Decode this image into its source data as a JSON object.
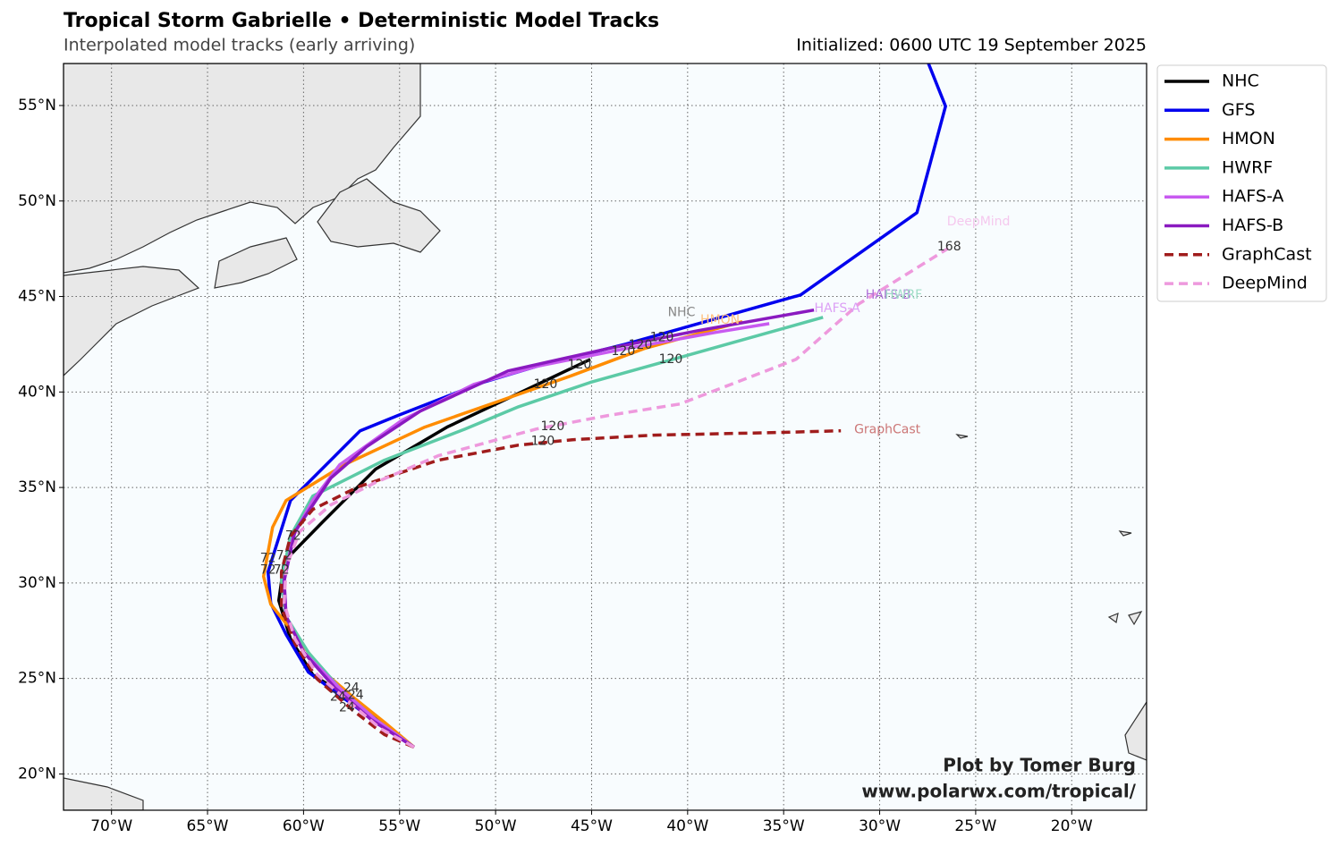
{
  "chart_data": {
    "type": "line",
    "title": "Tropical Storm Gabrielle • Deterministic Model Tracks",
    "subtitle": "Interpolated model tracks (early arriving)",
    "init_text": "Initialized: 0600 UTC 19 September 2025",
    "credit": [
      "Plot by Tomer Burg",
      "www.polarwx.com/tropical/"
    ],
    "grid": true,
    "legend": "upper right outside",
    "xlim": [
      -72.5,
      -16.1
    ],
    "ylim": [
      18.1,
      57.2
    ],
    "xticks": [
      {
        "value": -70,
        "label": "70°W"
      },
      {
        "value": -65,
        "label": "65°W"
      },
      {
        "value": -60,
        "label": "60°W"
      },
      {
        "value": -55,
        "label": "55°W"
      },
      {
        "value": -50,
        "label": "50°W"
      },
      {
        "value": -45,
        "label": "45°W"
      },
      {
        "value": -40,
        "label": "40°W"
      },
      {
        "value": -35,
        "label": "35°W"
      },
      {
        "value": -30,
        "label": "30°W"
      },
      {
        "value": -25,
        "label": "25°W"
      },
      {
        "value": -20,
        "label": "20°W"
      }
    ],
    "yticks": [
      {
        "value": 20,
        "label": "20°N"
      },
      {
        "value": 25,
        "label": "25°N"
      },
      {
        "value": 30,
        "label": "30°N"
      },
      {
        "value": 35,
        "label": "35°N"
      },
      {
        "value": 40,
        "label": "40°N"
      },
      {
        "value": 45,
        "label": "45°N"
      },
      {
        "value": 50,
        "label": "50°N"
      },
      {
        "value": 55,
        "label": "55°N"
      }
    ],
    "series": [
      {
        "name": "NHC",
        "color": "#000000",
        "linestyle": "solid",
        "x": [
          -54.25,
          -56.95,
          -59.52,
          -60.68,
          -61.29,
          -61.0,
          -59.05,
          -56.25,
          -52.53,
          -48.8,
          -45.07
        ],
        "values": [
          21.4,
          23.56,
          25.19,
          27.07,
          29.08,
          31.14,
          33.15,
          35.96,
          38.16,
          39.93,
          41.71
        ]
      },
      {
        "name": "GFS",
        "color": "#0000ee",
        "linestyle": "solid",
        "x": [
          -54.25,
          -56.72,
          -59.75,
          -60.91,
          -61.71,
          -61.85,
          -60.68,
          -57.05,
          -55.09,
          -50.66,
          -47.87,
          -43.21,
          -34.12,
          -28.06,
          -26.57,
          -27.46
        ],
        "values": [
          21.4,
          23.09,
          25.33,
          27.3,
          28.94,
          30.58,
          34.32,
          37.97,
          38.77,
          40.5,
          41.34,
          42.51,
          45.08,
          49.39,
          54.96,
          57.2
        ]
      },
      {
        "name": "HMON",
        "color": "#ff8c00",
        "linestyle": "solid",
        "x": [
          -54.25,
          -55.79,
          -57.42,
          -59.05,
          -60.45,
          -61.71,
          -62.08,
          -61.61,
          -60.91,
          -57.88,
          -53.69,
          -49.96,
          -46.0,
          -42.27,
          -38.55,
          -37.15
        ],
        "values": [
          21.4,
          22.71,
          24.02,
          25.43,
          27.3,
          28.89,
          30.34,
          32.92,
          34.32,
          36.19,
          38.16,
          39.47,
          40.87,
          42.27,
          43.3,
          43.68
        ]
      },
      {
        "name": "HWRF",
        "color": "#5ccaa6",
        "linestyle": "solid",
        "x": [
          -54.25,
          -56.25,
          -58.12,
          -59.75,
          -60.91,
          -61.15,
          -60.68,
          -59.52,
          -55.79,
          -51.59,
          -48.8,
          -45.07,
          -40.41,
          -32.95
        ],
        "values": [
          21.4,
          22.85,
          24.49,
          26.36,
          28.24,
          30.11,
          32.45,
          34.55,
          36.43,
          38.06,
          39.23,
          40.5,
          41.81,
          43.91
        ]
      },
      {
        "name": "HAFS-A",
        "color": "#c85af0",
        "linestyle": "solid",
        "x": [
          -54.25,
          -56.25,
          -58.12,
          -59.98,
          -60.91,
          -61.01,
          -60.54,
          -59.52,
          -58.12,
          -54.86,
          -51.13,
          -47.87,
          -43.21,
          -38.55,
          -35.75
        ],
        "values": [
          21.4,
          22.85,
          24.49,
          26.36,
          28.24,
          30.11,
          32.45,
          34.32,
          36.19,
          38.53,
          40.4,
          41.34,
          42.27,
          43.12,
          43.58
        ]
      },
      {
        "name": "HAFS-B",
        "color": "#8a1ac0",
        "linestyle": "solid",
        "x": [
          -54.25,
          -56.49,
          -58.35,
          -59.98,
          -60.91,
          -61.01,
          -60.45,
          -58.58,
          -56.72,
          -53.92,
          -49.36,
          -44.14,
          -39.48,
          -33.42
        ],
        "values": [
          21.4,
          22.85,
          24.49,
          26.36,
          28.24,
          30.11,
          32.68,
          35.49,
          37.13,
          39.0,
          41.1,
          42.27,
          43.21,
          44.29
        ]
      },
      {
        "name": "GraphCast",
        "color": "#a01c1c",
        "linestyle": "dashed",
        "x": [
          -54.25,
          -55.79,
          -57.42,
          -59.28,
          -60.45,
          -61.15,
          -61.15,
          -60.68,
          -59.52,
          -57.19,
          -52.99,
          -48.8,
          -46.0,
          -41.81,
          -35.28,
          -32.02
        ],
        "values": [
          21.4,
          22.06,
          23.32,
          24.96,
          26.83,
          28.7,
          30.58,
          32.45,
          33.85,
          35.02,
          36.43,
          37.22,
          37.5,
          37.74,
          37.88,
          37.97
        ]
      },
      {
        "name": "DeepMind",
        "color": "#ee99dd",
        "linestyle": "dashed",
        "x": [
          -54.25,
          -56.02,
          -57.65,
          -59.28,
          -60.45,
          -61.01,
          -60.91,
          -60.21,
          -58.58,
          -56.25,
          -52.99,
          -47.87,
          -44.14,
          -40.41,
          -34.35,
          -31.09,
          -26.43
        ],
        "values": [
          21.4,
          22.39,
          23.79,
          25.19,
          27.07,
          28.94,
          30.81,
          32.68,
          34.09,
          35.26,
          36.66,
          38.06,
          38.77,
          39.37,
          41.71,
          44.61,
          47.52
        ]
      }
    ],
    "annotations": [
      {
        "text": "NHC",
        "x": -40.32,
        "y": 44.15,
        "color": "#888888"
      },
      {
        "text": "HMON",
        "x": -38.31,
        "y": 43.77,
        "color": "#ffc080"
      },
      {
        "text": "HAFS-A",
        "x": -32.21,
        "y": 44.38,
        "color": "#dca0f5"
      },
      {
        "text": "HAFS-B",
        "x": -29.55,
        "y": 45.08,
        "color": "#b070d8"
      },
      {
        "text": "HWRF",
        "x": -28.76,
        "y": 45.08,
        "color": "#9edcc6"
      },
      {
        "text": "DeepMind",
        "x": -24.85,
        "y": 48.92,
        "color": "#f5c8ee"
      },
      {
        "text": "GraphCast",
        "x": -29.6,
        "y": 38.02,
        "color": "#cc7777"
      },
      {
        "text": "168",
        "x": -26.38,
        "y": 47.61,
        "color": "#333333"
      },
      {
        "text": "120",
        "x": -45.63,
        "y": 41.43,
        "color": "#333333"
      },
      {
        "text": "120",
        "x": -47.4,
        "y": 40.4,
        "color": "#333333"
      },
      {
        "text": "120",
        "x": -41.34,
        "y": 42.84,
        "color": "#333333"
      },
      {
        "text": "120",
        "x": -40.88,
        "y": 41.71,
        "color": "#333333"
      },
      {
        "text": "120",
        "x": -47.03,
        "y": 38.2,
        "color": "#333333"
      },
      {
        "text": "120",
        "x": -47.54,
        "y": 37.41,
        "color": "#333333"
      },
      {
        "text": "120",
        "x": -43.35,
        "y": 42.13,
        "color": "#333333"
      },
      {
        "text": "120",
        "x": -42.46,
        "y": 42.46,
        "color": "#333333"
      },
      {
        "text": "72",
        "x": -60.54,
        "y": 32.45,
        "color": "#333333"
      },
      {
        "text": "72",
        "x": -61.85,
        "y": 31.28,
        "color": "#333333"
      },
      {
        "text": "72",
        "x": -61.01,
        "y": 31.42,
        "color": "#333333"
      },
      {
        "text": "72",
        "x": -61.85,
        "y": 30.67,
        "color": "#333333"
      },
      {
        "text": "72",
        "x": -61.15,
        "y": 30.67,
        "color": "#333333"
      },
      {
        "text": "24",
        "x": -57.51,
        "y": 24.49,
        "color": "#333333"
      },
      {
        "text": "24",
        "x": -57.28,
        "y": 24.12,
        "color": "#333333"
      },
      {
        "text": "24",
        "x": -58.21,
        "y": 24.02,
        "color": "#333333"
      },
      {
        "text": "24",
        "x": -57.74,
        "y": 23.46,
        "color": "#333333"
      }
    ]
  }
}
